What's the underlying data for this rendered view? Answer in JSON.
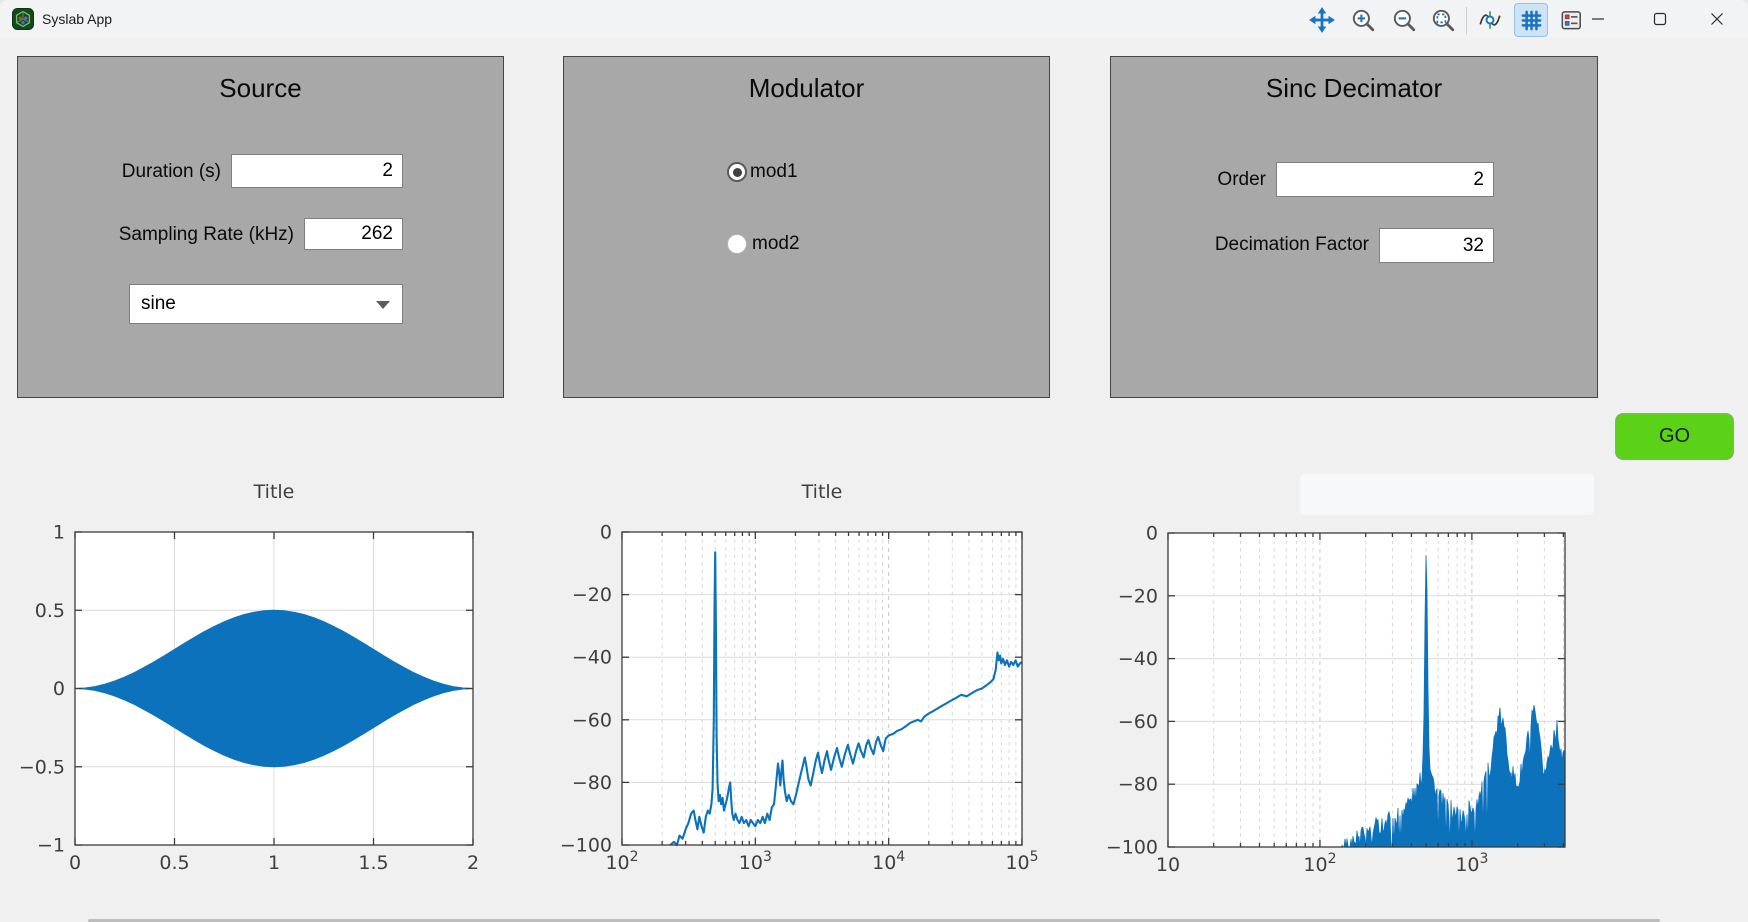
{
  "window": {
    "title": "Syslab App"
  },
  "panels": {
    "source": {
      "title": "Source",
      "fields": [
        {
          "label": "Duration (s)",
          "value": "2"
        },
        {
          "label": "Sampling Rate (kHz)",
          "value": "262"
        }
      ],
      "waveform_select": {
        "value": "sine"
      }
    },
    "modulator": {
      "title": "Modulator",
      "options": [
        {
          "label": "mod1",
          "selected": true
        },
        {
          "label": "mod2",
          "selected": false
        }
      ]
    },
    "decimator": {
      "title": "Sinc Decimator",
      "fields": [
        {
          "label": "Order",
          "value": "2"
        },
        {
          "label": "Decimation Factor",
          "value": "32"
        }
      ]
    }
  },
  "go_button": {
    "label": "GO",
    "color": "#5bd117"
  },
  "toolbar": {
    "icons": [
      "pan",
      "zoom-in",
      "zoom-out",
      "zoom-fit",
      "data-cursor",
      "grid",
      "legend"
    ],
    "active": "grid"
  },
  "colors": {
    "accent_blue": "#0d72bc",
    "panel_gray": "#a8a8a8",
    "background": "#f0f0f0"
  },
  "chart_data": [
    {
      "id": "time-domain",
      "type": "area",
      "title": "Title",
      "color": "#0d72bc",
      "xlim": [
        0,
        2
      ],
      "ylim": [
        -1,
        1
      ],
      "xticks": [
        0,
        0.5,
        1,
        1.5,
        2
      ],
      "xtick_labels": [
        {
          "t": "0"
        },
        {
          "t": "0.5"
        },
        {
          "t": "1"
        },
        {
          "t": "1.5"
        },
        {
          "t": "2"
        }
      ],
      "yticks": [
        -1,
        -0.5,
        0,
        0.5,
        1
      ],
      "ytick_labels": [
        "−1",
        "−0.5",
        "0",
        "0.5",
        "1"
      ],
      "grid": true,
      "note": "amplitude-modulated sine, fill bounded by ±envelope",
      "envelope_t": [
        0,
        0.05,
        0.1,
        0.15,
        0.2,
        0.25,
        0.3,
        0.35,
        0.4,
        0.45,
        0.5,
        0.55,
        0.6,
        0.65,
        0.7,
        0.75,
        0.8,
        0.85,
        0.9,
        0.95,
        1,
        1.05,
        1.1,
        1.15,
        1.2,
        1.25,
        1.3,
        1.35,
        1.4,
        1.45,
        1.5,
        1.55,
        1.6,
        1.65,
        1.7,
        1.75,
        1.8,
        1.85,
        1.9,
        1.95,
        2
      ],
      "envelope_a": [
        0,
        0.0031,
        0.0122,
        0.0273,
        0.0477,
        0.0732,
        0.103,
        0.1365,
        0.1727,
        0.2109,
        0.25,
        0.2891,
        0.3273,
        0.3635,
        0.397,
        0.4268,
        0.4523,
        0.4727,
        0.4878,
        0.4969,
        0.5,
        0.4969,
        0.4878,
        0.4727,
        0.4523,
        0.4268,
        0.397,
        0.3635,
        0.3273,
        0.2891,
        0.25,
        0.2109,
        0.1727,
        0.1365,
        0.103,
        0.0732,
        0.0477,
        0.0273,
        0.0122,
        0.0031,
        0
      ]
    },
    {
      "id": "modulator-spectrum",
      "type": "line",
      "title": "Title",
      "color": "#0d72bc",
      "xscale": "log",
      "xlim": [
        100,
        100000
      ],
      "ylim": [
        -100,
        0
      ],
      "xticks": [
        100,
        1000,
        10000,
        100000
      ],
      "xtick_labels": [
        {
          "t": "10",
          "s": "2"
        },
        {
          "t": "10",
          "s": "3"
        },
        {
          "t": "10",
          "s": "4"
        },
        {
          "t": "10",
          "s": "5"
        }
      ],
      "yticks": [
        0,
        -20,
        -40,
        -60,
        -80,
        -100
      ],
      "ytick_labels": [
        "0",
        "−20",
        "−40",
        "−60",
        "−80",
        "−100"
      ],
      "grid": true,
      "points": [
        [
          230,
          -100
        ],
        [
          245,
          -99
        ],
        [
          258,
          -100
        ],
        [
          270,
          -97
        ],
        [
          285,
          -98
        ],
        [
          300,
          -95
        ],
        [
          315,
          -93
        ],
        [
          330,
          -90
        ],
        [
          345,
          -89
        ],
        [
          355,
          -92
        ],
        [
          368,
          -95
        ],
        [
          380,
          -91
        ],
        [
          395,
          -94
        ],
        [
          410,
          -96
        ],
        [
          425,
          -91
        ],
        [
          440,
          -89
        ],
        [
          455,
          -90
        ],
        [
          468,
          -87
        ],
        [
          478,
          -82
        ],
        [
          488,
          -60
        ],
        [
          494,
          -25
        ],
        [
          500,
          -6.5
        ],
        [
          506,
          -30
        ],
        [
          512,
          -65
        ],
        [
          520,
          -80
        ],
        [
          530,
          -86
        ],
        [
          542,
          -84
        ],
        [
          555,
          -87
        ],
        [
          568,
          -85
        ],
        [
          582,
          -89
        ],
        [
          598,
          -87
        ],
        [
          615,
          -85
        ],
        [
          632,
          -82
        ],
        [
          648,
          -80
        ],
        [
          660,
          -86
        ],
        [
          672,
          -90
        ],
        [
          690,
          -92
        ],
        [
          710,
          -90
        ],
        [
          735,
          -92
        ],
        [
          760,
          -93
        ],
        [
          790,
          -91
        ],
        [
          820,
          -93
        ],
        [
          855,
          -92
        ],
        [
          890,
          -94
        ],
        [
          925,
          -92
        ],
        [
          960,
          -93
        ],
        [
          1000,
          -94
        ],
        [
          1045,
          -92
        ],
        [
          1090,
          -93
        ],
        [
          1135,
          -91
        ],
        [
          1180,
          -93
        ],
        [
          1230,
          -90
        ],
        [
          1280,
          -92
        ],
        [
          1330,
          -88
        ],
        [
          1380,
          -87
        ],
        [
          1420,
          -82
        ],
        [
          1450,
          -78
        ],
        [
          1480,
          -74
        ],
        [
          1510,
          -77
        ],
        [
          1540,
          -81
        ],
        [
          1570,
          -76
        ],
        [
          1600,
          -73
        ],
        [
          1630,
          -79
        ],
        [
          1670,
          -83
        ],
        [
          1720,
          -86
        ],
        [
          1780,
          -84
        ],
        [
          1850,
          -86
        ],
        [
          1930,
          -87
        ],
        [
          2020,
          -84
        ],
        [
          2120,
          -80
        ],
        [
          2230,
          -76
        ],
        [
          2350,
          -72
        ],
        [
          2420,
          -75
        ],
        [
          2500,
          -79
        ],
        [
          2600,
          -81
        ],
        [
          2720,
          -77
        ],
        [
          2840,
          -73
        ],
        [
          2950,
          -70.5
        ],
        [
          3050,
          -74
        ],
        [
          3160,
          -77
        ],
        [
          3300,
          -73
        ],
        [
          3450,
          -70
        ],
        [
          3550,
          -73
        ],
        [
          3700,
          -76
        ],
        [
          3900,
          -72
        ],
        [
          4100,
          -69
        ],
        [
          4250,
          -72
        ],
        [
          4450,
          -75
        ],
        [
          4700,
          -71
        ],
        [
          4950,
          -68
        ],
        [
          5150,
          -71
        ],
        [
          5400,
          -74
        ],
        [
          5700,
          -70
        ],
        [
          5950,
          -67.5
        ],
        [
          6200,
          -70
        ],
        [
          6500,
          -72
        ],
        [
          6800,
          -68
        ],
        [
          7050,
          -66.5
        ],
        [
          7350,
          -69
        ],
        [
          7700,
          -71
        ],
        [
          8050,
          -67
        ],
        [
          8350,
          -65.5
        ],
        [
          8700,
          -68
        ],
        [
          9100,
          -70
        ],
        [
          9500,
          -66
        ],
        [
          10000,
          -65
        ],
        [
          10800,
          -64.5
        ],
        [
          11600,
          -63.5
        ],
        [
          12500,
          -63
        ],
        [
          13500,
          -62
        ],
        [
          14500,
          -61
        ],
        [
          15500,
          -60.5
        ],
        [
          16500,
          -60
        ],
        [
          17500,
          -60.5
        ],
        [
          18500,
          -59
        ],
        [
          20000,
          -58
        ],
        [
          22000,
          -57
        ],
        [
          24000,
          -56
        ],
        [
          26500,
          -55
        ],
        [
          29000,
          -54
        ],
        [
          32000,
          -53
        ],
        [
          35000,
          -52
        ],
        [
          38500,
          -52.5
        ],
        [
          42000,
          -51.5
        ],
        [
          46000,
          -50.5
        ],
        [
          50000,
          -50
        ],
        [
          54000,
          -49
        ],
        [
          58000,
          -48
        ],
        [
          61000,
          -47
        ],
        [
          63500,
          -44
        ],
        [
          65500,
          -38.5
        ],
        [
          67000,
          -41
        ],
        [
          68500,
          -39.5
        ],
        [
          70000,
          -42
        ],
        [
          72000,
          -40.5
        ],
        [
          74500,
          -42.5
        ],
        [
          77000,
          -41
        ],
        [
          80000,
          -43
        ],
        [
          83000,
          -41.5
        ],
        [
          86000,
          -42.5
        ],
        [
          89500,
          -41
        ],
        [
          93000,
          -43
        ],
        [
          96500,
          -42
        ],
        [
          100000,
          -41.5
        ]
      ]
    },
    {
      "id": "decimator-spectrum",
      "type": "area",
      "title": "",
      "color": "#0d72bc",
      "xscale": "log",
      "xlim": [
        10,
        4100
      ],
      "ylim": [
        -100,
        0
      ],
      "xticks": [
        10,
        100,
        1000
      ],
      "xtick_labels": [
        {
          "t": "10"
        },
        {
          "t": "10",
          "s": "2"
        },
        {
          "t": "10",
          "s": "3"
        }
      ],
      "yticks": [
        0,
        -20,
        -40,
        -60,
        -80,
        -100
      ],
      "ytick_labels": [
        "0",
        "−20",
        "−40",
        "−60",
        "−80",
        "−100"
      ],
      "grid": true,
      "note": "noisy spectrum filled from -100 dB up to envelope",
      "envelope": [
        [
          10,
          -115
        ],
        [
          120,
          -103
        ],
        [
          140,
          -100
        ],
        [
          170,
          -97
        ],
        [
          200,
          -95
        ],
        [
          250,
          -92
        ],
        [
          300,
          -90
        ],
        [
          350,
          -87
        ],
        [
          400,
          -84
        ],
        [
          440,
          -81
        ],
        [
          460,
          -78
        ],
        [
          475,
          -72
        ],
        [
          485,
          -55
        ],
        [
          492,
          -25
        ],
        [
          497,
          -8
        ],
        [
          500,
          -6.5
        ],
        [
          504,
          -10
        ],
        [
          510,
          -30
        ],
        [
          518,
          -60
        ],
        [
          528,
          -72
        ],
        [
          540,
          -76
        ],
        [
          560,
          -79
        ],
        [
          580,
          -81
        ],
        [
          620,
          -84
        ],
        [
          660,
          -86
        ],
        [
          700,
          -87
        ],
        [
          750,
          -88
        ],
        [
          800,
          -88
        ],
        [
          850,
          -89
        ],
        [
          900,
          -88
        ],
        [
          950,
          -87
        ],
        [
          1000,
          -86
        ],
        [
          1060,
          -85
        ],
        [
          1120,
          -83
        ],
        [
          1180,
          -81
        ],
        [
          1240,
          -78
        ],
        [
          1300,
          -74
        ],
        [
          1360,
          -69
        ],
        [
          1420,
          -64
        ],
        [
          1480,
          -60
        ],
        [
          1530,
          -58
        ],
        [
          1570,
          -58
        ],
        [
          1620,
          -61
        ],
        [
          1680,
          -66
        ],
        [
          1750,
          -71
        ],
        [
          1850,
          -76
        ],
        [
          1950,
          -79
        ],
        [
          2050,
          -78
        ],
        [
          2150,
          -74
        ],
        [
          2250,
          -69
        ],
        [
          2350,
          -64
        ],
        [
          2450,
          -60
        ],
        [
          2550,
          -57
        ],
        [
          2650,
          -59
        ],
        [
          2750,
          -64
        ],
        [
          2850,
          -70
        ],
        [
          2950,
          -74
        ],
        [
          3050,
          -75
        ],
        [
          3150,
          -72
        ],
        [
          3250,
          -69
        ],
        [
          3350,
          -66
        ],
        [
          3450,
          -63
        ],
        [
          3550,
          -62
        ],
        [
          3650,
          -62
        ],
        [
          3750,
          -65
        ],
        [
          3850,
          -68
        ],
        [
          3950,
          -71
        ],
        [
          4094,
          -72
        ]
      ]
    }
  ]
}
